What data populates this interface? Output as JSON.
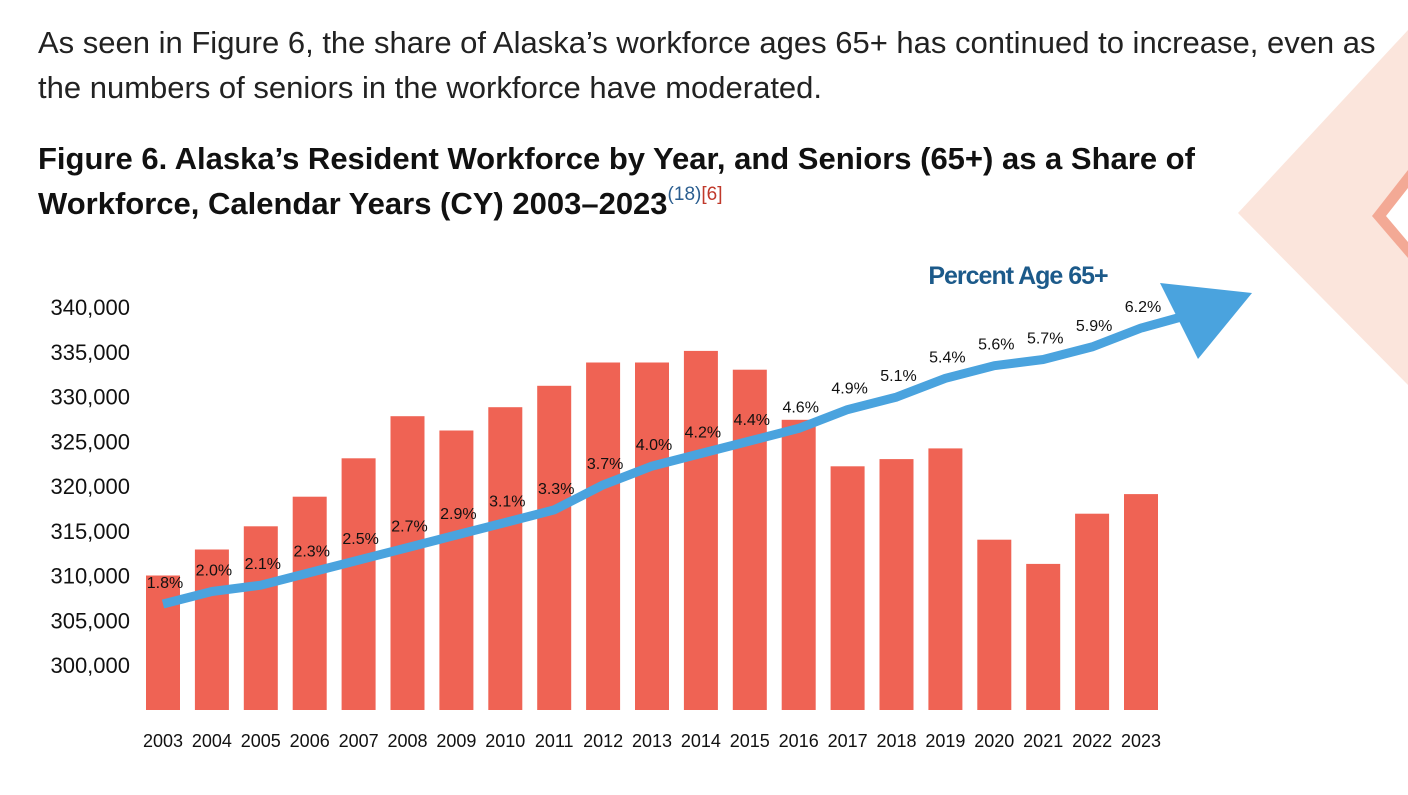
{
  "intro_text": "As seen in Figure 6, the share of Alaska’s workforce ages 65+ has continued to increase, even as the numbers of seniors in the workforce have moderated.",
  "figure": {
    "title": "Figure 6. Alaska’s Resident Workforce by Year, and Seniors (65+) as a Share of Workforce, Calendar Years (CY) 2003–2023",
    "ref_1": "(18)",
    "ref_2": "[6]"
  },
  "colors": {
    "bar": "#ef6354",
    "line": "#4aa3de",
    "line_title": "#1c5a8a",
    "deco_outer": "#fbe5dc",
    "deco_inner": "#f3a995"
  },
  "chart_data": {
    "type": "bar",
    "categories": [
      "2003",
      "2004",
      "2005",
      "2006",
      "2007",
      "2008",
      "2009",
      "2010",
      "2011",
      "2012",
      "2013",
      "2014",
      "2015",
      "2016",
      "2017",
      "2018",
      "2019",
      "2020",
      "2021",
      "2022",
      "2023"
    ],
    "ylim": [
      295000,
      340000
    ],
    "yticks": [
      "340,000",
      "335,000",
      "330,000",
      "325,000",
      "320,000",
      "315,000",
      "310,000",
      "305,000",
      "300,000"
    ],
    "ytick_values": [
      340000,
      335000,
      330000,
      325000,
      320000,
      315000,
      310000,
      305000,
      300000
    ],
    "series": [
      {
        "type": "bar",
        "values": [
          310000,
          312900,
          315500,
          318800,
          323100,
          327800,
          326200,
          328800,
          331200,
          333800,
          333800,
          335100,
          333000,
          327400,
          322200,
          323000,
          324200,
          314000,
          311300,
          316900,
          319100
        ]
      },
      {
        "name": "Percent Age 65+",
        "type": "line",
        "values": [
          1.8,
          2.0,
          2.1,
          2.3,
          2.5,
          2.7,
          2.9,
          3.1,
          3.3,
          3.7,
          4.0,
          4.2,
          4.4,
          4.6,
          4.9,
          5.1,
          5.4,
          5.6,
          5.7,
          5.9,
          6.2
        ],
        "labels": [
          "1.8%",
          "2.0%",
          "2.1%",
          "2.3%",
          "2.5%",
          "2.7%",
          "2.9%",
          "3.1%",
          "3.3%",
          "3.7%",
          "4.0%",
          "4.2%",
          "4.4%",
          "4.6%",
          "4.9%",
          "5.1%",
          "5.4%",
          "5.6%",
          "5.7%",
          "5.9%",
          "6.2%"
        ]
      }
    ],
    "grid": false,
    "legend": "none"
  }
}
